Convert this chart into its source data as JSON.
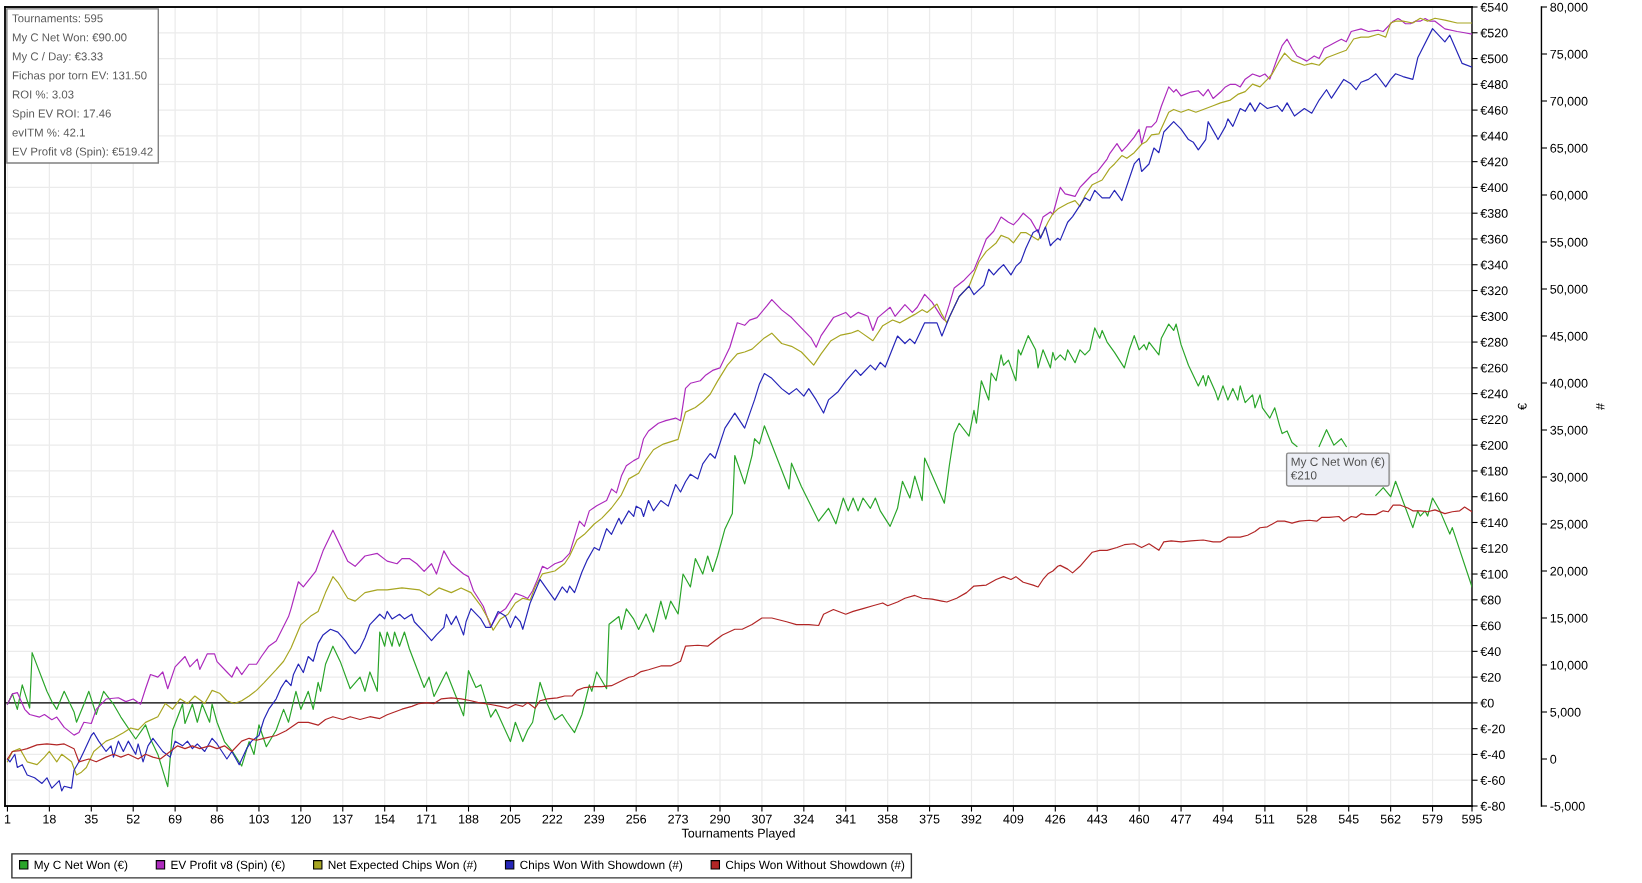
{
  "chart_data": {
    "type": "line",
    "xlabel": "Tournaments Played",
    "ylabel": "€",
    "y2label": "#",
    "annotations": [
      "Tournaments: 595",
      "My C Net Won: €90.00",
      "My C / Day: €3.33",
      "Fichas por torn EV: 131.50",
      "ROI %: 3.03",
      "Spin EV ROI: 17.46",
      "evITM %: 42.1",
      "EV Profit v8 (Spin): €519.42",
      {
        "text": "My C Net Won (€)\n€210",
        "x": 535,
        "y": 210
      }
    ],
    "xlim": [
      0,
      595
    ],
    "xticks": [
      1,
      18,
      35,
      52,
      69,
      86,
      103,
      120,
      137,
      154,
      171,
      188,
      205,
      222,
      239,
      256,
      273,
      290,
      307,
      324,
      341,
      358,
      375,
      392,
      409,
      426,
      443,
      460,
      477,
      494,
      511,
      528,
      545,
      562,
      579,
      595
    ],
    "ylim": [
      -80,
      540
    ],
    "yticks": [
      {
        "value": -80,
        "label": "€-80"
      },
      {
        "value": -60,
        "label": "€-60"
      },
      {
        "value": -40,
        "label": "€-40"
      },
      {
        "value": -20,
        "label": "€-20"
      },
      {
        "value": 0,
        "label": "€0"
      },
      {
        "value": 20,
        "label": "€20"
      },
      {
        "value": 40,
        "label": "€40"
      },
      {
        "value": 60,
        "label": "€60"
      },
      {
        "value": 80,
        "label": "€80"
      },
      {
        "value": 100,
        "label": "€100"
      },
      {
        "value": 120,
        "label": "€120"
      },
      {
        "value": 140,
        "label": "€140"
      },
      {
        "value": 160,
        "label": "€160"
      },
      {
        "value": 180,
        "label": "€180"
      },
      {
        "value": 200,
        "label": "€200"
      },
      {
        "value": 220,
        "label": "€220"
      },
      {
        "value": 240,
        "label": "€240"
      },
      {
        "value": 260,
        "label": "€260"
      },
      {
        "value": 280,
        "label": "€280"
      },
      {
        "value": 300,
        "label": "€300"
      },
      {
        "value": 320,
        "label": "€320"
      },
      {
        "value": 340,
        "label": "€340"
      },
      {
        "value": 360,
        "label": "€360"
      },
      {
        "value": 380,
        "label": "€380"
      },
      {
        "value": 400,
        "label": "€400"
      },
      {
        "value": 420,
        "label": "€420"
      },
      {
        "value": 440,
        "label": "€440"
      },
      {
        "value": 460,
        "label": "€460"
      },
      {
        "value": 480,
        "label": "€480"
      },
      {
        "value": 500,
        "label": "€500"
      },
      {
        "value": 520,
        "label": "€520"
      },
      {
        "value": 540,
        "label": "€540"
      }
    ],
    "y2lim": [
      -5000,
      80000
    ],
    "y2ticks": [
      {
        "value": -5000,
        "label": "-5,000"
      },
      0,
      {
        "value": 5000,
        "label": "5,000"
      },
      {
        "value": 10000,
        "label": "10,000"
      },
      {
        "value": 15000,
        "label": "15,000"
      },
      {
        "value": 20000,
        "label": "20,000"
      },
      {
        "value": 25000,
        "label": "25,000"
      },
      {
        "value": 30000,
        "label": "30,000"
      },
      {
        "value": 35000,
        "label": "35,000"
      },
      {
        "value": 40000,
        "label": "40,000"
      },
      {
        "value": 45000,
        "label": "45,000"
      },
      {
        "value": 50000,
        "label": "50,000"
      },
      {
        "value": 55000,
        "label": "55,000"
      },
      {
        "value": 60000,
        "label": "60,000"
      },
      {
        "value": 65000,
        "label": "65,000"
      },
      {
        "value": 70000,
        "label": "70,000"
      },
      {
        "value": 75000,
        "label": "75,000"
      },
      {
        "value": 80000,
        "label": "80,000"
      }
    ],
    "grid": true,
    "legend": "bottom left",
    "ref_lines": [
      {
        "axis": "y",
        "value": 0,
        "color": "#000000"
      }
    ],
    "series": [
      {
        "name": "My C Net Won (€)",
        "color": "#2aa52a",
        "x": [
          1,
          3,
          5,
          7,
          10,
          11,
          17,
          19,
          21,
          24,
          28,
          29,
          32,
          34,
          37,
          40,
          44,
          47,
          53,
          57,
          59,
          62,
          66,
          68,
          72,
          73,
          76,
          78,
          80,
          83,
          84,
          86,
          89,
          92,
          96,
          99,
          101,
          103,
          106,
          110,
          113,
          115,
          118,
          120,
          123,
          125,
          127,
          128,
          130,
          133,
          136,
          140,
          144,
          146,
          148,
          151,
          152,
          154,
          155,
          157,
          158,
          160,
          162,
          164,
          170,
          172,
          174,
          179,
          186,
          188,
          191,
          193,
          197,
          199,
          200,
          205,
          207,
          210,
          212,
          214,
          217,
          220,
          223,
          226,
          228,
          231,
          234,
          237,
          238,
          240,
          244,
          245,
          249,
          250,
          252,
          255,
          257,
          260,
          263,
          266,
          268,
          270,
          273,
          275,
          278,
          280,
          283,
          285,
          287,
          289,
          292,
          295,
          296,
          300,
          303,
          304,
          306,
          308,
          318,
          319,
          323,
          330,
          334,
          337,
          340,
          342,
          344,
          346,
          348,
          351,
          353,
          355,
          359,
          362,
          364,
          367,
          369,
          372,
          373,
          381,
          383,
          385,
          387,
          391,
          393,
          394,
          396,
          399,
          400,
          402,
          404,
          405,
          407,
          410,
          411,
          412,
          415,
          418,
          419,
          421,
          424,
          425,
          426,
          428,
          430,
          431,
          434,
          436,
          438,
          440,
          442,
          444,
          445,
          447,
          450,
          454,
          456,
          458,
          460,
          462,
          463,
          464,
          468,
          469,
          472,
          474,
          475,
          477,
          480,
          484,
          486,
          487,
          488,
          491,
          492,
          494,
          496,
          498,
          500,
          501,
          503,
          506,
          507,
          509,
          510,
          513,
          515,
          517,
          518,
          520,
          522,
          524,
          528,
          533,
          536,
          539,
          542,
          544,
          550,
          556,
          559,
          562,
          564,
          571,
          573,
          574,
          576,
          577,
          579,
          582,
          586,
          587,
          595
        ],
        "values": [
          -1,
          7,
          -5,
          14,
          -4,
          39,
          9,
          1,
          -5,
          9,
          -7,
          -15,
          -1,
          9,
          -9,
          9,
          -1,
          -11,
          -28,
          -17,
          -28,
          -40,
          -65,
          -21,
          -1,
          -16,
          -1,
          -15,
          -1,
          -15,
          -1,
          -15,
          -30,
          -37,
          -49,
          -30,
          -40,
          -17,
          -34,
          -21,
          -5,
          -15,
          9,
          -5,
          9,
          -5,
          16,
          9,
          30,
          44,
          32,
          11,
          20,
          9,
          24,
          9,
          55,
          44,
          55,
          44,
          55,
          44,
          55,
          42,
          12,
          20,
          5,
          24,
          -10,
          25,
          12,
          14,
          -11,
          -5,
          -9,
          -30,
          -15,
          -30,
          -21,
          -15,
          16,
          -1,
          -13,
          -9,
          -15,
          -23,
          -9,
          14,
          9,
          24,
          11,
          61,
          67,
          57,
          73,
          65,
          57,
          69,
          55,
          79,
          65,
          79,
          69,
          100,
          90,
          112,
          100,
          114,
          102,
          114,
          135,
          147,
          192,
          170,
          192,
          205,
          201,
          215,
          166,
          186,
          168,
          141,
          151,
          139,
          159,
          149,
          159,
          149,
          159,
          151,
          159,
          149,
          137,
          151,
          172,
          159,
          176,
          157,
          190,
          155,
          184,
          209,
          217,
          207,
          227,
          217,
          250,
          235,
          256,
          250,
          270,
          262,
          266,
          250,
          274,
          270,
          285,
          274,
          260,
          274,
          260,
          272,
          266,
          270,
          266,
          274,
          264,
          274,
          270,
          274,
          291,
          283,
          289,
          280,
          272,
          260,
          274,
          285,
          274,
          278,
          274,
          280,
          270,
          283,
          294,
          289,
          294,
          278,
          262,
          246,
          254,
          246,
          254,
          241,
          235,
          246,
          235,
          244,
          235,
          246,
          233,
          239,
          229,
          239,
          229,
          221,
          229,
          215,
          209,
          211,
          202,
          199,
          null,
          199,
          212,
          200,
          205,
          199,
          null,
          161,
          167,
          160,
          172,
          136,
          149,
          145,
          149,
          145,
          159,
          149,
          131,
          136,
          90
        ]
      },
      {
        "name": "EV Profit v8 (Spin) (€)",
        "color": "#ad2bbd",
        "x": [
          1,
          3,
          5,
          8,
          10,
          14,
          16,
          19,
          21,
          24,
          28,
          30,
          32,
          35,
          37,
          41,
          46,
          49,
          52,
          55,
          57,
          59,
          62,
          64,
          66,
          69,
          73,
          75,
          78,
          79,
          82,
          85,
          86,
          90,
          92,
          94,
          96,
          99,
          102,
          104,
          107,
          110,
          115,
          116,
          119,
          121,
          126,
          129,
          133,
          135,
          139,
          142,
          146,
          151,
          155,
          159,
          161,
          164,
          167,
          170,
          173,
          175,
          178,
          181,
          186,
          188,
          190,
          194,
          197,
          200,
          203,
          207,
          210,
          212,
          214,
          216,
          218,
          220,
          223,
          226,
          229,
          233,
          235,
          237,
          240,
          244,
          246,
          248,
          250,
          252,
          255,
          257,
          259,
          261,
          265,
          268,
          272,
          274,
          276,
          278,
          282,
          284,
          287,
          290,
          294,
          297,
          300,
          302,
          305,
          309,
          311,
          315,
          319,
          322,
          327,
          329,
          331,
          336,
          341,
          343,
          346,
          350,
          352,
          354,
          359,
          361,
          365,
          368,
          370,
          373,
          376,
          380,
          381,
          383,
          385,
          389,
          393,
          396,
          398,
          401,
          404,
          407,
          409,
          411,
          413,
          416,
          419,
          421,
          424,
          425,
          428,
          430,
          434,
          436,
          438,
          441,
          443,
          447,
          448,
          451,
          453,
          455,
          458,
          460,
          461,
          463,
          465,
          467,
          469,
          472,
          474,
          475,
          477,
          481,
          484,
          486,
          488,
          490,
          493,
          495,
          497,
          499,
          501,
          503,
          506,
          509,
          511,
          512,
          513,
          516,
          518,
          520,
          522,
          524,
          526,
          528,
          531,
          533,
          535,
          537,
          540,
          542,
          544,
          546,
          550,
          553,
          557,
          559,
          563,
          565,
          566,
          568,
          570,
          572,
          574,
          576,
          578,
          580,
          582,
          584,
          589,
          592,
          595
        ],
        "values": [
          -1,
          7,
          8,
          -5,
          -9,
          -11,
          -9,
          -13,
          -11,
          -19,
          -25,
          -23,
          -15,
          -16,
          -5,
          3,
          4,
          1,
          3,
          -1,
          11,
          22,
          20,
          24,
          11,
          28,
          36,
          28,
          34,
          26,
          38,
          38,
          32,
          24,
          20,
          28,
          22,
          30,
          30,
          36,
          44,
          48,
          67,
          73,
          94,
          90,
          102,
          118,
          134,
          126,
          110,
          106,
          114,
          116,
          110,
          108,
          112,
          112,
          108,
          102,
          108,
          100,
          118,
          108,
          100,
          98,
          87,
          75,
          59,
          69,
          73,
          85,
          83,
          81,
          87,
          96,
          106,
          104,
          108,
          110,
          116,
          141,
          137,
          149,
          153,
          157,
          166,
          163,
          176,
          184,
          188,
          190,
          205,
          211,
          217,
          219,
          221,
          219,
          244,
          248,
          250,
          254,
          258,
          260,
          276,
          295,
          293,
          297,
          299,
          308,
          313,
          305,
          299,
          293,
          283,
          276,
          285,
          299,
          303,
          299,
          303,
          300,
          289,
          299,
          307,
          300,
          309,
          303,
          307,
          317,
          311,
          299,
          297,
          309,
          322,
          328,
          336,
          350,
          360,
          366,
          377,
          373,
          371,
          375,
          380,
          375,
          365,
          377,
          381,
          379,
          400,
          395,
          393,
          400,
          404,
          410,
          412,
          422,
          426,
          434,
          428,
          432,
          439,
          445,
          434,
          447,
          447,
          451,
          463,
          478,
          474,
          476,
          471,
          474,
          475,
          471,
          476,
          469,
          474,
          478,
          480,
          480,
          478,
          484,
          488,
          486,
          488,
          486,
          484,
          500,
          510,
          515,
          508,
          502,
          500,
          498,
          502,
          500,
          508,
          510,
          513,
          515,
          513,
          521,
          523,
          521,
          522,
          521,
          529,
          531,
          530,
          527,
          527,
          529,
          529,
          531,
          529,
          529,
          526,
          523,
          521,
          520,
          519
        ]
      },
      {
        "name": "Net Expected Chips Won (#)",
        "color": "#a8a622",
        "axis": "y2",
        "x": [
          1,
          3,
          6,
          9,
          13,
          16,
          18,
          21,
          23,
          27,
          29,
          31,
          33,
          36,
          41,
          44,
          48,
          51,
          54,
          57,
          62,
          65,
          68,
          71,
          74,
          77,
          81,
          84,
          87,
          90,
          93,
          96,
          99,
          102,
          105,
          110,
          113,
          116,
          120,
          124,
          127,
          130,
          133,
          135,
          139,
          142,
          146,
          151,
          155,
          161,
          168,
          172,
          176,
          181,
          185,
          189,
          193,
          196,
          198,
          201,
          204,
          207,
          210,
          213,
          215,
          218,
          223,
          227,
          229,
          232,
          235,
          239,
          242,
          246,
          250,
          253,
          257,
          260,
          263,
          267,
          273,
          276,
          280,
          283,
          286,
          289,
          293,
          297,
          300,
          303,
          308,
          311,
          315,
          319,
          323,
          328,
          331,
          335,
          339,
          343,
          346,
          352,
          356,
          360,
          363,
          369,
          372,
          374,
          378,
          380,
          382,
          385,
          387,
          391,
          395,
          398,
          402,
          404,
          407,
          409,
          412,
          414,
          419,
          421,
          423,
          425,
          427,
          431,
          434,
          436,
          438,
          441,
          445,
          448,
          450,
          453,
          455,
          458,
          461,
          463,
          465,
          468,
          472,
          474,
          477,
          480,
          483,
          486,
          490,
          493,
          497,
          500,
          503,
          506,
          509,
          512,
          514,
          517,
          519,
          522,
          527,
          530,
          533,
          536,
          541,
          544,
          547,
          550,
          553,
          557,
          560,
          562,
          564,
          567,
          571,
          574,
          577,
          580,
          584,
          589,
          595
        ],
        "values": [
          -300,
          800,
          1100,
          -300,
          -600,
          200,
          800,
          -300,
          500,
          -300,
          -1700,
          -1400,
          -900,
          800,
          1900,
          2200,
          2800,
          3300,
          3100,
          3900,
          4500,
          5900,
          5300,
          6400,
          5900,
          6700,
          5900,
          7300,
          7000,
          6200,
          5900,
          6200,
          6700,
          7300,
          8100,
          9500,
          10400,
          11800,
          14300,
          15200,
          15700,
          17700,
          19400,
          18800,
          17100,
          16800,
          17700,
          18000,
          18000,
          18200,
          18000,
          17400,
          18200,
          17700,
          18200,
          17700,
          16300,
          14900,
          13700,
          14900,
          15400,
          16600,
          17100,
          16900,
          18300,
          19700,
          20000,
          20800,
          21600,
          23300,
          23900,
          25000,
          25600,
          26700,
          28100,
          29800,
          30400,
          31800,
          32900,
          33500,
          34000,
          36900,
          37400,
          38000,
          38800,
          40200,
          41900,
          43100,
          43300,
          43600,
          44800,
          45300,
          44200,
          43900,
          43300,
          41900,
          43100,
          44500,
          45100,
          45300,
          45600,
          44500,
          46100,
          46700,
          46400,
          47300,
          47800,
          47500,
          48400,
          47300,
          46400,
          48100,
          49200,
          50300,
          52900,
          54000,
          54900,
          55700,
          55400,
          54900,
          56000,
          56000,
          55200,
          56000,
          57100,
          58000,
          58500,
          59100,
          59400,
          58800,
          59900,
          61100,
          61600,
          62800,
          63300,
          64200,
          63900,
          64500,
          65400,
          65700,
          66400,
          66500,
          68800,
          69100,
          68800,
          69100,
          68800,
          69100,
          69500,
          69800,
          70100,
          70700,
          71000,
          71800,
          71500,
          72300,
          72900,
          74300,
          75100,
          74300,
          73800,
          74000,
          73800,
          74600,
          75100,
          75400,
          76600,
          76800,
          76800,
          77100,
          76800,
          78300,
          78500,
          78500,
          78300,
          78800,
          78500,
          78800,
          78600,
          78300,
          78300
        ]
      },
      {
        "name": "Chips Won With Showdown (#)",
        "color": "#2626b8",
        "axis": "y2",
        "x": [
          1,
          2,
          4,
          5,
          7,
          9,
          12,
          15,
          17,
          19,
          22,
          23,
          24,
          27,
          28,
          30,
          32,
          35,
          36,
          38,
          41,
          43,
          44,
          46,
          48,
          50,
          53,
          54,
          56,
          58,
          60,
          64,
          67,
          69,
          72,
          74,
          76,
          78,
          81,
          84,
          86,
          88,
          90,
          92,
          95,
          98,
          100,
          103,
          105,
          107,
          110,
          112,
          114,
          116,
          117,
          119,
          121,
          123,
          125,
          127,
          129,
          132,
          135,
          138,
          140,
          142,
          144,
          146,
          148,
          152,
          154,
          155,
          157,
          160,
          162,
          165,
          166,
          170,
          173,
          175,
          178,
          179,
          181,
          183,
          186,
          187,
          189,
          193,
          195,
          197,
          200,
          203,
          205,
          207,
          209,
          210,
          213,
          217,
          220,
          223,
          226,
          228,
          229,
          231,
          234,
          236,
          239,
          241,
          244,
          246,
          249,
          250,
          253,
          255,
          256,
          258,
          259,
          261,
          263,
          266,
          269,
          272,
          274,
          276,
          278,
          281,
          283,
          286,
          288,
          292,
          296,
          298,
          300,
          304,
          306,
          308,
          311,
          315,
          318,
          321,
          324,
          326,
          329,
          332,
          334,
          338,
          341,
          345,
          347,
          351,
          353,
          355,
          357,
          362,
          365,
          367,
          369,
          371,
          373,
          378,
          380,
          383,
          387,
          391,
          393,
          397,
          399,
          401,
          403,
          405,
          408,
          410,
          412,
          414,
          417,
          419,
          420,
          422,
          424,
          425,
          427,
          428,
          431,
          433,
          435,
          438,
          440,
          442,
          445,
          448,
          450,
          453,
          454,
          458,
          460,
          461,
          464,
          466,
          468,
          470,
          474,
          477,
          480,
          482,
          484,
          487,
          488,
          491,
          492,
          495,
          496,
          498,
          501,
          503,
          505,
          507,
          509,
          512,
          516,
          518,
          520,
          523,
          527,
          530,
          533,
          536,
          538,
          543,
          546,
          548,
          550,
          553,
          556,
          560,
          562,
          564,
          567,
          571,
          573,
          579,
          584,
          586,
          591,
          595
        ],
        "values": [
          0,
          -300,
          500,
          -900,
          -600,
          -1700,
          -2000,
          -2600,
          -2000,
          -3100,
          -2300,
          -3400,
          -2900,
          -3100,
          -1200,
          -300,
          800,
          2500,
          2800,
          1900,
          800,
          1400,
          200,
          1900,
          800,
          1900,
          500,
          1600,
          -300,
          1400,
          2200,
          800,
          200,
          1900,
          1400,
          1900,
          1100,
          1600,
          800,
          2200,
          1600,
          800,
          0,
          800,
          -600,
          1100,
          1900,
          2500,
          4200,
          5300,
          6400,
          7600,
          8400,
          7800,
          9000,
          10100,
          9200,
          10900,
          10400,
          12300,
          13200,
          13800,
          13500,
          12600,
          11800,
          11200,
          11800,
          12900,
          14300,
          15400,
          14900,
          15700,
          14900,
          15400,
          14900,
          15400,
          14600,
          13500,
          12600,
          13200,
          14000,
          15400,
          14300,
          15200,
          13200,
          14600,
          16000,
          14900,
          14000,
          14000,
          15700,
          15200,
          14000,
          15200,
          14600,
          13800,
          16600,
          19100,
          18000,
          16900,
          18300,
          17700,
          18400,
          17700,
          19900,
          21100,
          22500,
          22200,
          24500,
          23900,
          25600,
          25000,
          26400,
          25800,
          26900,
          26600,
          25800,
          27500,
          26400,
          27500,
          26900,
          29200,
          28400,
          29500,
          30300,
          29800,
          31400,
          32500,
          32000,
          35200,
          36800,
          36000,
          35200,
          38200,
          39900,
          41000,
          40500,
          39400,
          38800,
          39400,
          38600,
          39400,
          38200,
          36800,
          38200,
          39100,
          40200,
          41400,
          40800,
          41900,
          41400,
          42200,
          41700,
          45000,
          44200,
          44700,
          44200,
          45300,
          46400,
          46400,
          45000,
          47000,
          49200,
          50300,
          49400,
          50400,
          52100,
          51500,
          52100,
          52600,
          51500,
          52400,
          52900,
          54300,
          56000,
          56300,
          55400,
          56600,
          54600,
          54900,
          55400,
          55200,
          57100,
          57700,
          58500,
          59700,
          59400,
          60500,
          59700,
          59700,
          60500,
          59400,
          60200,
          63300,
          63900,
          62500,
          63300,
          65000,
          64500,
          66700,
          67800,
          67000,
          65900,
          65600,
          64800,
          65900,
          67800,
          66400,
          65900,
          67300,
          68100,
          67300,
          69200,
          68900,
          69800,
          68900,
          69800,
          69200,
          69500,
          68900,
          69800,
          68400,
          69200,
          68700,
          70100,
          71200,
          70300,
          72300,
          71800,
          71200,
          72000,
          72300,
          72900,
          71500,
          72300,
          72900,
          72600,
          72300,
          74600,
          77700,
          76300,
          77000,
          74000,
          73600
        ]
      },
      {
        "name": "Chips Won Without Showdown (#)",
        "color": "#b22626",
        "axis": "y2",
        "x": [
          1,
          3,
          6,
          9,
          13,
          17,
          21,
          24,
          28,
          30,
          34,
          37,
          41,
          44,
          47,
          50,
          54,
          57,
          60,
          63,
          67,
          70,
          73,
          76,
          79,
          83,
          86,
          89,
          92,
          96,
          99,
          102,
          105,
          110,
          114,
          119,
          123,
          127,
          130,
          133,
          137,
          140,
          144,
          148,
          152,
          155,
          158,
          161,
          165,
          168,
          171,
          174,
          177,
          181,
          185,
          189,
          192,
          197,
          201,
          204,
          207,
          210,
          212,
          215,
          217,
          220,
          224,
          227,
          230,
          232,
          235,
          239,
          242,
          246,
          253,
          255,
          258,
          261,
          266,
          270,
          274,
          276,
          281,
          285,
          288,
          291,
          296,
          299,
          303,
          307,
          311,
          317,
          321,
          326,
          330,
          332,
          336,
          341,
          344,
          348,
          352,
          356,
          358,
          362,
          365,
          369,
          372,
          376,
          380,
          382,
          386,
          390,
          393,
          398,
          402,
          405,
          408,
          410,
          413,
          417,
          419,
          421,
          423,
          425,
          427,
          428,
          431,
          433,
          436,
          438,
          441,
          444,
          447,
          451,
          454,
          458,
          461,
          464,
          468,
          470,
          473,
          477,
          481,
          486,
          490,
          493,
          496,
          501,
          504,
          507,
          509,
          512,
          516,
          519,
          522,
          525,
          529,
          532,
          534,
          537,
          541,
          543,
          546,
          548,
          550,
          552,
          556,
          559,
          561,
          563,
          566,
          569,
          571,
          574,
          577,
          580,
          584,
          587,
          590,
          592,
          595
        ],
        "values": [
          0,
          800,
          900,
          1100,
          1500,
          1600,
          1500,
          1600,
          1100,
          -300,
          0,
          -300,
          200,
          500,
          200,
          500,
          0,
          500,
          200,
          0,
          800,
          1400,
          1100,
          1400,
          1100,
          1400,
          1100,
          1400,
          800,
          1900,
          2200,
          2000,
          2200,
          2500,
          3000,
          3900,
          3900,
          3600,
          4200,
          4500,
          4200,
          4500,
          4200,
          4500,
          4300,
          4700,
          5000,
          5300,
          5600,
          5900,
          6000,
          5900,
          6400,
          6500,
          6400,
          6200,
          6000,
          5800,
          5600,
          5400,
          5800,
          5600,
          6000,
          5400,
          6200,
          6400,
          6500,
          6700,
          6700,
          7300,
          7600,
          7700,
          7700,
          7800,
          8700,
          8800,
          9300,
          9500,
          9900,
          9900,
          10400,
          12000,
          12100,
          12000,
          12600,
          13200,
          13800,
          13800,
          14300,
          15000,
          15000,
          14600,
          14300,
          14300,
          14200,
          15400,
          15900,
          15400,
          15700,
          16000,
          16300,
          16600,
          16300,
          16700,
          17100,
          17400,
          17100,
          17000,
          16800,
          16700,
          17100,
          17700,
          18400,
          18500,
          19100,
          19400,
          19100,
          19400,
          18800,
          18500,
          18300,
          19100,
          19700,
          20000,
          20500,
          20600,
          20200,
          19800,
          20500,
          21100,
          22000,
          22200,
          22200,
          22500,
          22800,
          22900,
          22500,
          22900,
          22200,
          23100,
          23200,
          23100,
          23200,
          23300,
          23100,
          23100,
          23600,
          23600,
          23800,
          24200,
          24600,
          24700,
          25300,
          25300,
          25100,
          25300,
          25400,
          25300,
          25700,
          25700,
          25800,
          25300,
          25800,
          25700,
          26100,
          26000,
          26000,
          26400,
          26300,
          27000,
          27000,
          26700,
          26400,
          26400,
          26300,
          26500,
          26100,
          26300,
          26400,
          26800,
          26300
        ]
      }
    ]
  }
}
